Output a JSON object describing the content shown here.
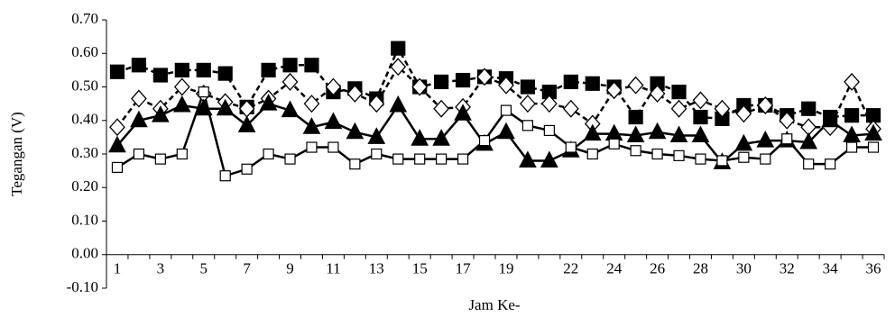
{
  "chart_data": {
    "type": "line",
    "ylabel": "Tegangan (V)",
    "xlabel": "Jam Ke-",
    "categories": [
      "1",
      null,
      "3",
      null,
      "5",
      null,
      "7",
      null,
      "9",
      null,
      "11",
      null,
      "13",
      null,
      "15",
      null,
      "17",
      null,
      "19",
      null,
      null,
      "22",
      null,
      "24",
      null,
      "26",
      null,
      "28",
      null,
      "30",
      null,
      "32",
      null,
      "34",
      null,
      "36"
    ],
    "series": [
      {
        "color": "#000000",
        "marker": "square-filled",
        "dash": true,
        "values": [
          0.545,
          0.565,
          0.535,
          0.55,
          0.55,
          0.54,
          0.44,
          0.55,
          0.565,
          0.565,
          0.485,
          0.495,
          0.465,
          0.615,
          0.5,
          0.515,
          0.52,
          0.53,
          0.525,
          0.5,
          0.485,
          0.515,
          0.51,
          0.5,
          0.41,
          0.51,
          0.485,
          0.41,
          0.405,
          0.445,
          0.445,
          0.415,
          0.435,
          0.41,
          0.415,
          0.415
        ]
      },
      {
        "color": "#000000",
        "marker": "diamond-open",
        "dash": true,
        "values": [
          0.38,
          0.465,
          0.435,
          0.5,
          0.48,
          0.455,
          0.435,
          0.465,
          0.515,
          0.45,
          0.5,
          0.48,
          0.45,
          0.56,
          0.5,
          0.435,
          0.44,
          0.53,
          0.505,
          0.45,
          0.45,
          0.435,
          0.39,
          0.49,
          0.505,
          0.48,
          0.435,
          0.46,
          0.435,
          0.42,
          0.445,
          0.4,
          0.38,
          0.38,
          0.515,
          0.375
        ]
      },
      {
        "color": "#000000",
        "marker": "triangle-filled",
        "dash": false,
        "values": [
          0.325,
          0.4,
          0.415,
          0.445,
          0.435,
          0.435,
          0.385,
          0.45,
          0.43,
          0.38,
          0.395,
          0.365,
          0.35,
          0.445,
          0.345,
          0.345,
          0.42,
          0.33,
          0.365,
          0.28,
          0.28,
          0.31,
          0.36,
          0.36,
          0.355,
          0.365,
          0.355,
          0.355,
          0.275,
          0.33,
          0.34,
          0.34,
          0.335,
          0.4,
          0.355,
          0.36
        ]
      },
      {
        "color": "#000000",
        "marker": "square-open",
        "dash": false,
        "values": [
          0.26,
          0.3,
          0.285,
          0.3,
          0.485,
          0.235,
          0.255,
          0.3,
          0.285,
          0.32,
          0.32,
          0.27,
          0.3,
          0.285,
          0.285,
          0.285,
          0.285,
          0.34,
          0.43,
          0.385,
          0.37,
          0.32,
          0.3,
          0.33,
          0.31,
          0.3,
          0.295,
          0.285,
          0.28,
          0.29,
          0.285,
          0.345,
          0.27,
          0.27,
          0.32,
          0.32
        ]
      }
    ],
    "ylim": [
      -0.1,
      0.7
    ],
    "yticks": [
      {
        "value": -0.1,
        "label": "-0.10"
      },
      {
        "value": 0,
        "label": "0.00"
      },
      {
        "value": 0.1,
        "label": "0.10"
      },
      {
        "value": 0.2,
        "label": "0.20"
      },
      {
        "value": 0.3,
        "label": "0.30"
      },
      {
        "value": 0.4,
        "label": "0.40"
      },
      {
        "value": 0.5,
        "label": "0.50"
      },
      {
        "value": 0.6,
        "label": "0.60"
      },
      {
        "value": 0.7,
        "label": "0.70"
      }
    ],
    "grid": false
  }
}
